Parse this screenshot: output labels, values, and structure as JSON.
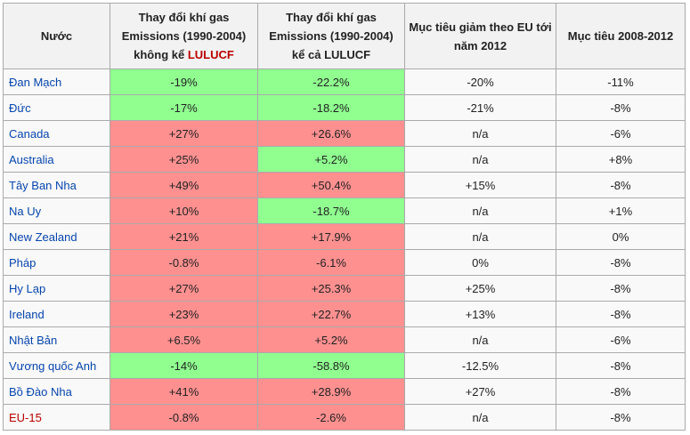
{
  "table": {
    "headers": [
      "Nước",
      {
        "text": "Thay đổi khí gas Emissions (1990-2004) không kể",
        "link": "LULUCF"
      },
      "Thay đổi khí gas Emissions (1990-2004) kể cả LULUCF",
      "Mục tiêu giảm theo EU tới năm 2012",
      "Mục tiêu 2008-2012"
    ],
    "colors": {
      "green": "#90ff90",
      "red": "#ff9090",
      "link": "#0645ad",
      "missing_link": "#ba0000"
    },
    "rows": [
      {
        "country": "Đan Mạch",
        "values": [
          "-19%",
          "-22.2%",
          "-20%",
          "-11%"
        ],
        "fills": [
          "green",
          "green"
        ]
      },
      {
        "country": "Đức",
        "values": [
          "-17%",
          "-18.2%",
          "-21%",
          "-8%"
        ],
        "fills": [
          "green",
          "green"
        ]
      },
      {
        "country": "Canada",
        "values": [
          "+27%",
          "+26.6%",
          "n/a",
          "-6%"
        ],
        "fills": [
          "red",
          "red"
        ]
      },
      {
        "country": "Australia",
        "values": [
          "+25%",
          "+5.2%",
          "n/a",
          "+8%"
        ],
        "fills": [
          "red",
          "green"
        ]
      },
      {
        "country": "Tây Ban Nha",
        "values": [
          "+49%",
          "+50.4%",
          "+15%",
          "-8%"
        ],
        "fills": [
          "red",
          "red"
        ]
      },
      {
        "country": "Na Uy",
        "values": [
          "+10%",
          "-18.7%",
          "n/a",
          "+1%"
        ],
        "fills": [
          "red",
          "green"
        ]
      },
      {
        "country": "New Zealand",
        "values": [
          "+21%",
          "+17.9%",
          "n/a",
          "0%"
        ],
        "fills": [
          "red",
          "red"
        ]
      },
      {
        "country": "Pháp",
        "values": [
          "-0.8%",
          "-6.1%",
          "0%",
          "-8%"
        ],
        "fills": [
          "red",
          "red"
        ]
      },
      {
        "country": "Hy Lạp",
        "values": [
          "+27%",
          "+25.3%",
          "+25%",
          "-8%"
        ],
        "fills": [
          "red",
          "red"
        ]
      },
      {
        "country": "Ireland",
        "values": [
          "+23%",
          "+22.7%",
          "+13%",
          "-8%"
        ],
        "fills": [
          "red",
          "red"
        ]
      },
      {
        "country": "Nhật Bản",
        "values": [
          "+6.5%",
          "+5.2%",
          "n/a",
          "-6%"
        ],
        "fills": [
          "red",
          "red"
        ]
      },
      {
        "country": "Vương quốc Anh",
        "values": [
          "-14%",
          "-58.8%",
          "-12.5%",
          "-8%"
        ],
        "fills": [
          "green",
          "green"
        ]
      },
      {
        "country": "Bồ Đào Nha",
        "values": [
          "+41%",
          "+28.9%",
          "+27%",
          "-8%"
        ],
        "fills": [
          "red",
          "red"
        ]
      },
      {
        "country": "EU-15",
        "values": [
          "-0.8%",
          "-2.6%",
          "n/a",
          "-8%"
        ],
        "fills": [
          "red",
          "red"
        ],
        "missing": true
      }
    ]
  }
}
